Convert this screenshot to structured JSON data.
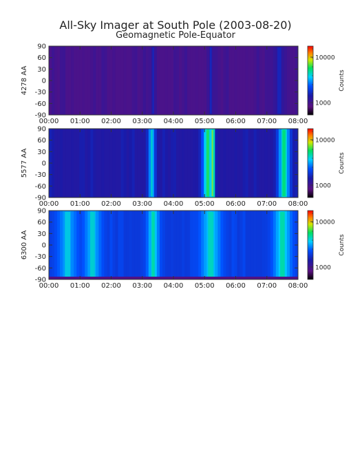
{
  "title": "All-Sky Imager at South Pole (2003-08-20)",
  "subtitle": "Geomagnetic Pole-Equator",
  "chart_data": [
    {
      "type": "heatmap",
      "ylabel": "4278 AA",
      "xticks": [
        "00:00",
        "01:00",
        "02:00",
        "03:00",
        "04:00",
        "05:00",
        "06:00",
        "07:00",
        "08:00"
      ],
      "yticks": [
        "90",
        "60",
        "30",
        "0",
        "-30",
        "-60",
        "-90"
      ],
      "xlim": [
        "00:00",
        "08:00"
      ],
      "ylim": [
        -90,
        90
      ],
      "colorbar": {
        "label": "Counts",
        "scale": "log",
        "ticks": [
          "10000",
          "1000"
        ]
      },
      "background_level": 0.16,
      "features": [
        {
          "t": 3.35,
          "width": 0.1,
          "level": 0.24
        },
        {
          "t": 5.2,
          "width": 0.1,
          "level": 0.25
        },
        {
          "t": 7.4,
          "width": 0.25,
          "level": 0.24
        }
      ]
    },
    {
      "type": "heatmap",
      "ylabel": "5577 AA",
      "xticks": [
        "00:00",
        "01:00",
        "02:00",
        "03:00",
        "04:00",
        "05:00",
        "06:00",
        "07:00",
        "08:00"
      ],
      "yticks": [
        "90",
        "60",
        "30",
        "0",
        "-30",
        "-60",
        "-90"
      ],
      "xlim": [
        "00:00",
        "08:00"
      ],
      "ylim": [
        -90,
        90
      ],
      "colorbar": {
        "label": "Counts",
        "scale": "log",
        "ticks": [
          "10000",
          "1000"
        ]
      },
      "background_level": 0.26,
      "features": [
        {
          "t": 3.3,
          "width": 0.12,
          "level": 0.52
        },
        {
          "t": 5.1,
          "width": 0.18,
          "level": 0.62
        },
        {
          "t": 5.25,
          "width": 0.08,
          "level": 0.7
        },
        {
          "t": 7.55,
          "width": 0.2,
          "level": 0.6
        }
      ]
    },
    {
      "type": "heatmap",
      "ylabel": "6300 AA",
      "xticks": [
        "00:00",
        "01:00",
        "02:00",
        "03:00",
        "04:00",
        "05:00",
        "06:00",
        "07:00",
        "08:00"
      ],
      "yticks": [
        "90",
        "60",
        "30",
        "0",
        "-30",
        "-60",
        "-90"
      ],
      "xlim": [
        "00:00",
        "08:00"
      ],
      "ylim": [
        -90,
        90
      ],
      "colorbar": {
        "label": "Counts",
        "scale": "log",
        "ticks": [
          "10000",
          "1000"
        ]
      },
      "background_level": 0.36,
      "features": [
        {
          "t": 0.6,
          "width": 0.35,
          "level": 0.5
        },
        {
          "t": 1.4,
          "width": 0.3,
          "level": 0.52
        },
        {
          "t": 3.35,
          "width": 0.2,
          "level": 0.56
        },
        {
          "t": 5.2,
          "width": 0.35,
          "level": 0.54
        },
        {
          "t": 7.5,
          "width": 0.3,
          "level": 0.56
        }
      ]
    }
  ]
}
